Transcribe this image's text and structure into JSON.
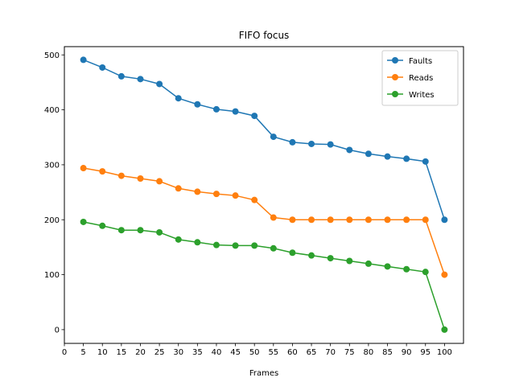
{
  "chart_data": {
    "type": "line",
    "title": "FIFO focus",
    "xlabel": "Frames",
    "ylabel": "",
    "x": [
      5,
      10,
      15,
      20,
      25,
      30,
      35,
      40,
      45,
      50,
      55,
      60,
      65,
      70,
      75,
      80,
      85,
      90,
      95,
      100
    ],
    "xticks": [
      0,
      5,
      10,
      15,
      20,
      25,
      30,
      35,
      40,
      45,
      50,
      55,
      60,
      65,
      70,
      75,
      80,
      85,
      90,
      95,
      100
    ],
    "yticks": [
      0,
      100,
      200,
      300,
      400,
      500
    ],
    "xlim": [
      0,
      105
    ],
    "ylim": [
      -25,
      515
    ],
    "grid": false,
    "legend_position": "top-right",
    "series": [
      {
        "name": "Faults",
        "color": "#1f77b4",
        "values": [
          491,
          477,
          461,
          456,
          447,
          421,
          410,
          401,
          397,
          389,
          351,
          341,
          338,
          337,
          327,
          320,
          315,
          311,
          306,
          200
        ]
      },
      {
        "name": "Reads",
        "color": "#ff7f0e",
        "values": [
          294,
          288,
          280,
          275,
          270,
          257,
          251,
          247,
          244,
          236,
          204,
          200,
          200,
          200,
          200,
          200,
          200,
          200,
          200,
          100
        ]
      },
      {
        "name": "Writes",
        "color": "#2ca02c",
        "values": [
          196,
          189,
          181,
          181,
          177,
          164,
          159,
          154,
          153,
          153,
          148,
          140,
          135,
          130,
          125,
          120,
          115,
          110,
          105,
          0
        ]
      }
    ]
  }
}
